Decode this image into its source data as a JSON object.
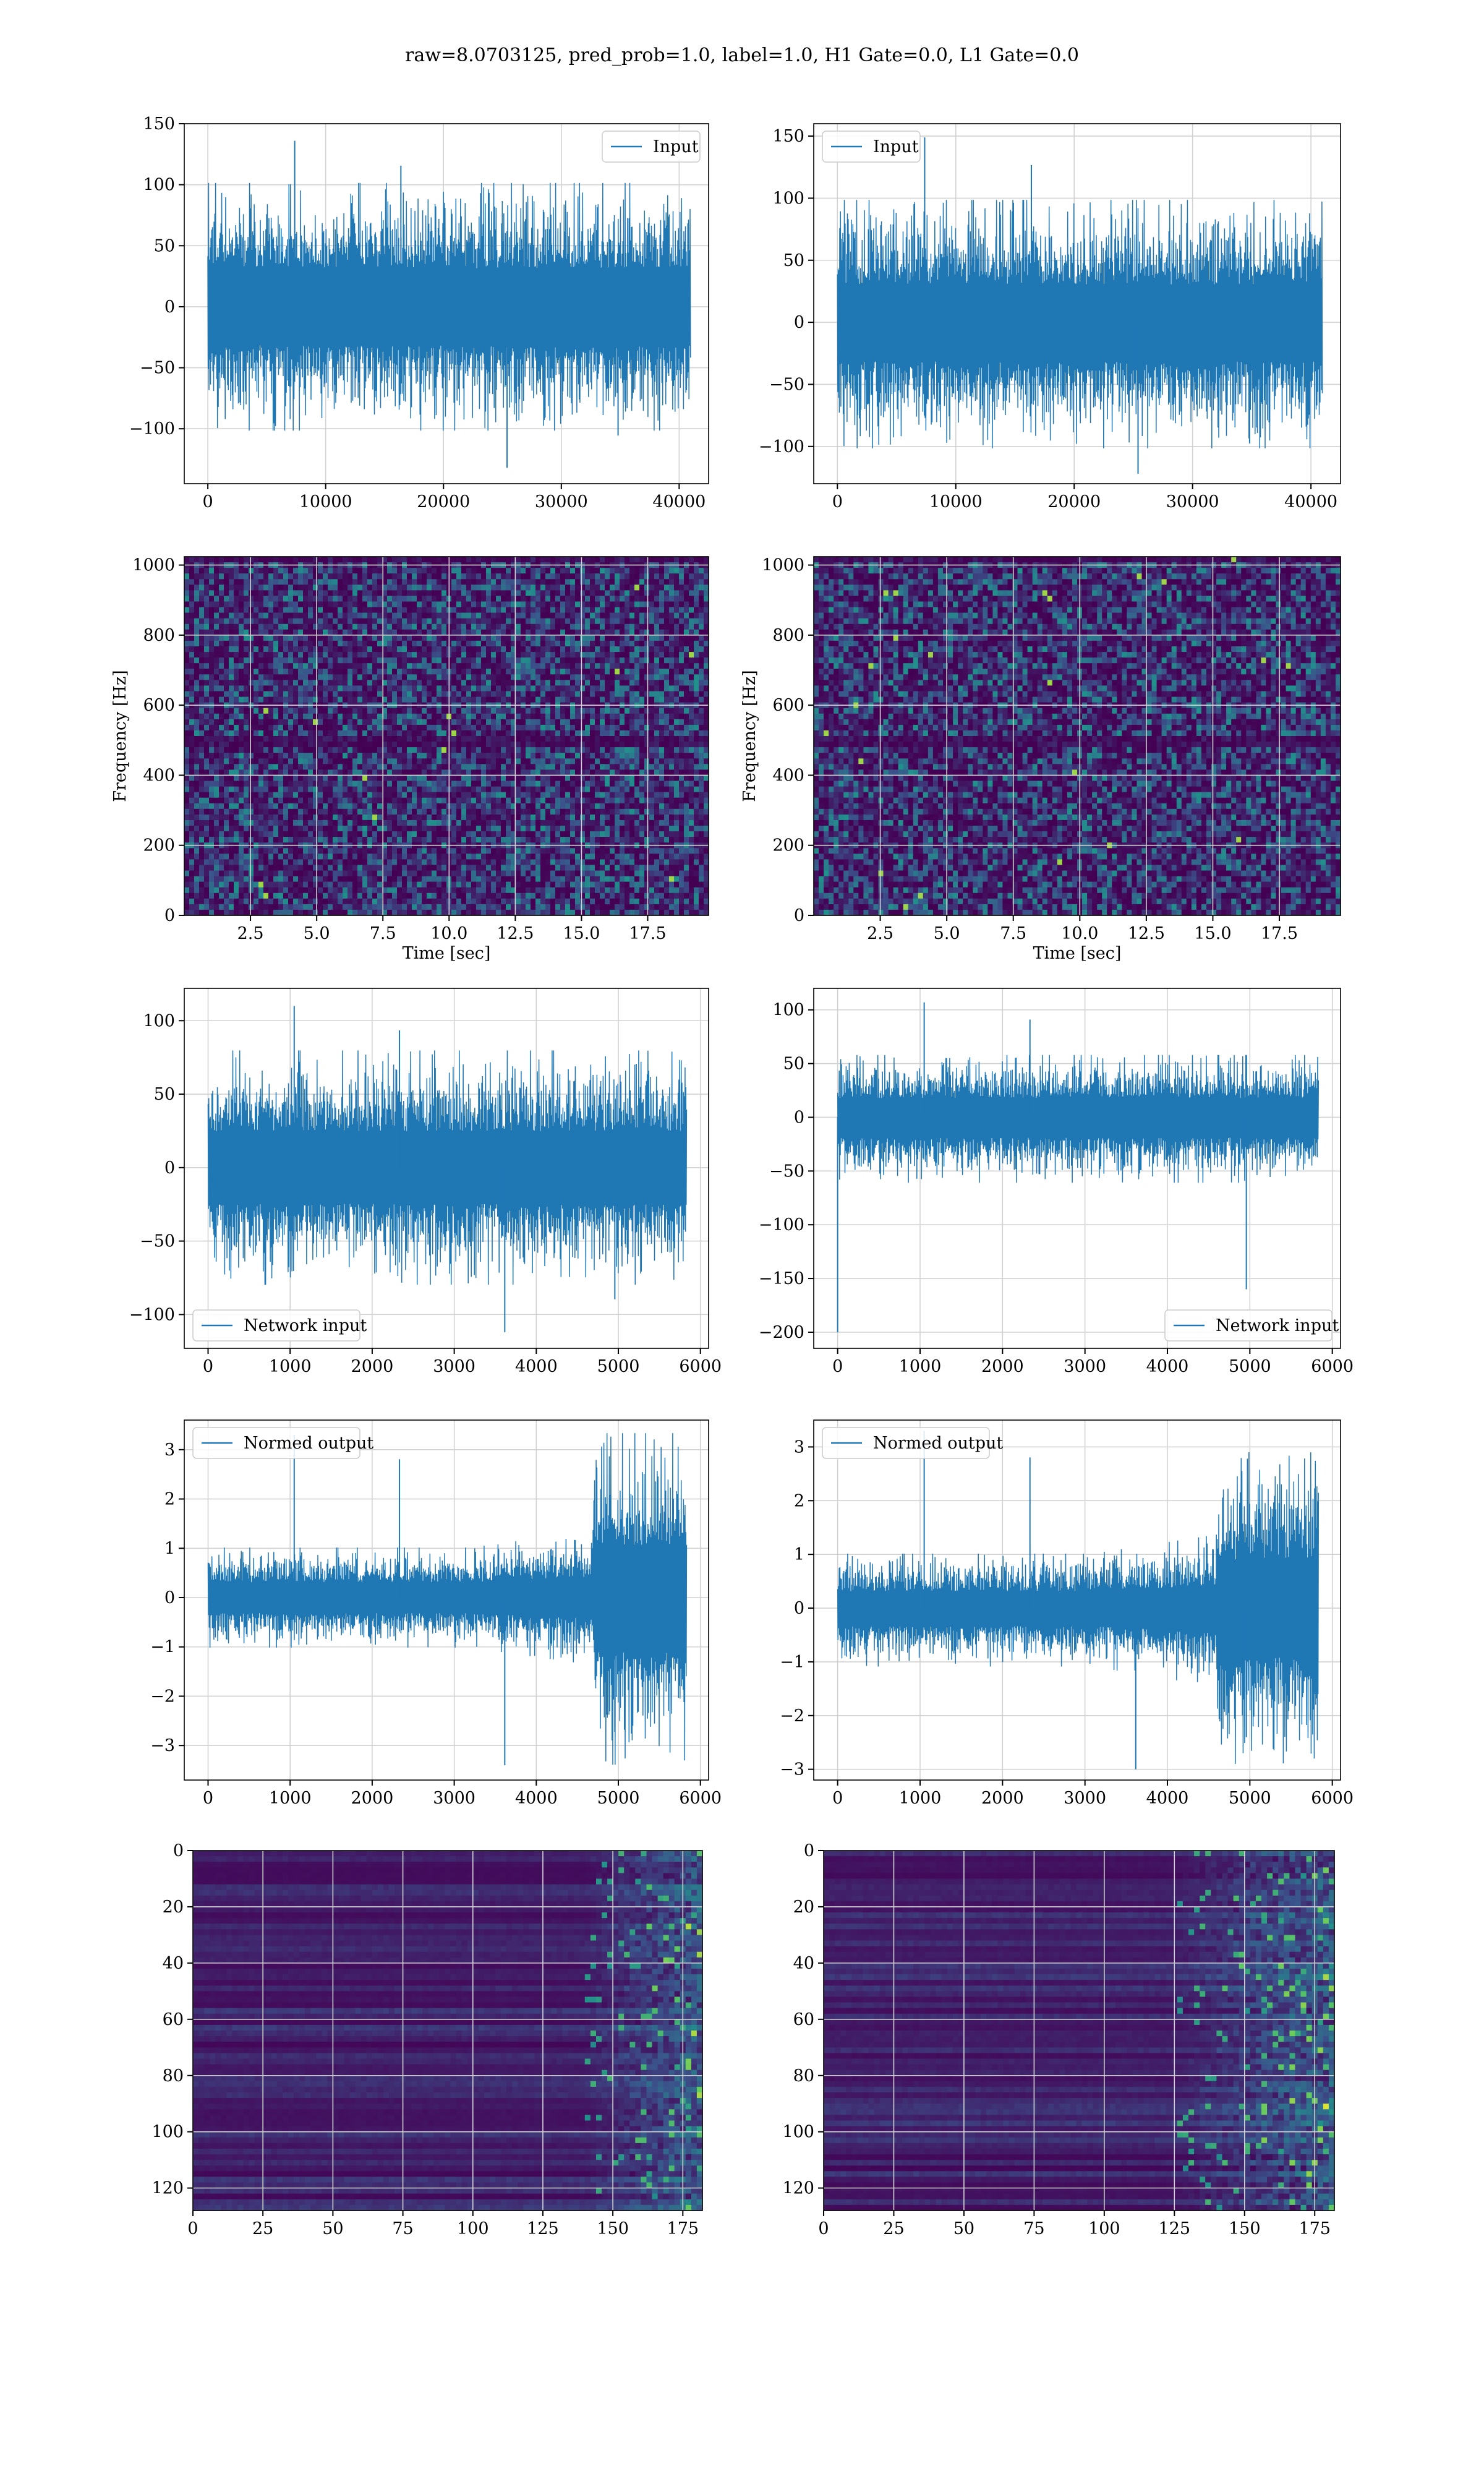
{
  "figure_title": "raw=8.0703125, pred_prob=1.0, label=1.0, H1 Gate=0.0, L1 Gate=0.0",
  "colors": {
    "series": "#1f77b4",
    "grid": "#d2d2d2",
    "viridis_low": "#440154",
    "viridis_mid": "#21908d",
    "viridis_high": "#fde725"
  },
  "chart_data": [
    {
      "id": "h1-input",
      "type": "line",
      "column": "left",
      "row": 0,
      "title": "",
      "xlabel": "",
      "ylabel": "",
      "xlim": [
        -2000,
        42500
      ],
      "ylim": [
        -145,
        150
      ],
      "xticks": [
        0,
        10000,
        20000,
        30000,
        40000
      ],
      "xticklabels": [
        "0",
        "10000",
        "20000",
        "30000",
        "40000"
      ],
      "yticks": [
        -100,
        -50,
        0,
        50,
        100,
        150
      ],
      "yticklabels": [
        "−100",
        "−50",
        "0",
        "50",
        "100",
        "150"
      ],
      "grid": true,
      "legend": "upper right",
      "series": [
        {
          "name": "Input",
          "x": [
            0,
            40960
          ],
          "envelope": {
            "typical_upper": 70,
            "typical_lower": -70,
            "max_peak": 136,
            "min_peak": -132
          }
        }
      ]
    },
    {
      "id": "l1-input",
      "type": "line",
      "column": "right",
      "row": 0,
      "title": "",
      "xlabel": "",
      "ylabel": "",
      "xlim": [
        -2000,
        42500
      ],
      "ylim": [
        -130,
        160
      ],
      "xticks": [
        0,
        10000,
        20000,
        30000,
        40000
      ],
      "xticklabels": [
        "0",
        "10000",
        "20000",
        "30000",
        "40000"
      ],
      "yticks": [
        -100,
        -50,
        0,
        50,
        100,
        150
      ],
      "yticklabels": [
        "−100",
        "−50",
        "0",
        "50",
        "100",
        "150"
      ],
      "grid": true,
      "legend": "upper left",
      "series": [
        {
          "name": "Input",
          "x": [
            0,
            40960
          ],
          "envelope": {
            "typical_upper": 68,
            "typical_lower": -70,
            "max_peak": 149,
            "min_peak": -122
          }
        }
      ]
    },
    {
      "id": "h1-spectrogram",
      "type": "heatmap",
      "column": "left",
      "row": 1,
      "title": "",
      "xlabel": "Time [sec]",
      "ylabel": "Frequency [Hz]",
      "xlim": [
        0,
        19.8
      ],
      "ylim": [
        0,
        1024
      ],
      "xticks": [
        2.5,
        5.0,
        7.5,
        10.0,
        12.5,
        15.0,
        17.5
      ],
      "xticklabels": [
        "2.5",
        "5.0",
        "7.5",
        "10.0",
        "12.5",
        "15.0",
        "17.5"
      ],
      "yticks": [
        0,
        200,
        400,
        600,
        800,
        1000
      ],
      "yticklabels": [
        "0",
        "200",
        "400",
        "600",
        "800",
        "1000"
      ],
      "grid": true,
      "dark_bands_hz": [
        500,
        1020
      ]
    },
    {
      "id": "l1-spectrogram",
      "type": "heatmap",
      "column": "right",
      "row": 1,
      "title": "",
      "xlabel": "Time [sec]",
      "ylabel": "Frequency [Hz]",
      "xlim": [
        0,
        19.8
      ],
      "ylim": [
        0,
        1024
      ],
      "xticks": [
        2.5,
        5.0,
        7.5,
        10.0,
        12.5,
        15.0,
        17.5
      ],
      "xticklabels": [
        "2.5",
        "5.0",
        "7.5",
        "10.0",
        "12.5",
        "15.0",
        "17.5"
      ],
      "yticks": [
        0,
        200,
        400,
        600,
        800,
        1000
      ],
      "yticklabels": [
        "0",
        "200",
        "400",
        "600",
        "800",
        "1000"
      ],
      "grid": true,
      "dark_bands_hz": [
        500,
        1020
      ]
    },
    {
      "id": "h1-network-input",
      "type": "line",
      "column": "left",
      "row": 2,
      "title": "",
      "xlabel": "",
      "ylabel": "",
      "xlim": [
        -290,
        6100
      ],
      "ylim": [
        -123,
        122
      ],
      "xticks": [
        0,
        1000,
        2000,
        3000,
        4000,
        5000,
        6000
      ],
      "xticklabels": [
        "0",
        "1000",
        "2000",
        "3000",
        "4000",
        "5000",
        "6000"
      ],
      "yticks": [
        -100,
        -50,
        0,
        50,
        100
      ],
      "yticklabels": [
        "−100",
        "−50",
        "0",
        "50",
        "100"
      ],
      "grid": true,
      "legend": "lower left",
      "series": [
        {
          "name": "Network input",
          "x": [
            0,
            5832
          ],
          "envelope": {
            "typical_upper": 55,
            "typical_lower": -55,
            "max_peak": 110,
            "min_peak": -112
          }
        }
      ]
    },
    {
      "id": "l1-network-input",
      "type": "line",
      "column": "right",
      "row": 2,
      "title": "",
      "xlabel": "",
      "ylabel": "",
      "xlim": [
        -290,
        6100
      ],
      "ylim": [
        -215,
        120
      ],
      "xticks": [
        0,
        1000,
        2000,
        3000,
        4000,
        5000,
        6000
      ],
      "xticklabels": [
        "0",
        "1000",
        "2000",
        "3000",
        "4000",
        "5000",
        "6000"
      ],
      "yticks": [
        -200,
        -150,
        -100,
        -50,
        0,
        50,
        100
      ],
      "yticklabels": [
        "−200",
        "−150",
        "−100",
        "−50",
        "0",
        "50",
        "100"
      ],
      "grid": true,
      "legend": "lower right",
      "series": [
        {
          "name": "Network input",
          "x": [
            0,
            5832
          ],
          "envelope": {
            "typical_upper": 40,
            "typical_lower": -42,
            "max_peak": 107,
            "min_peak": -200
          }
        }
      ]
    },
    {
      "id": "h1-normed-output",
      "type": "line",
      "column": "left",
      "row": 3,
      "title": "",
      "xlabel": "",
      "ylabel": "",
      "xlim": [
        -290,
        6100
      ],
      "ylim": [
        -3.7,
        3.6
      ],
      "xticks": [
        0,
        1000,
        2000,
        3000,
        4000,
        5000,
        6000
      ],
      "xticklabels": [
        "0",
        "1000",
        "2000",
        "3000",
        "4000",
        "5000",
        "6000"
      ],
      "yticks": [
        -3,
        -2,
        -1,
        0,
        1,
        2,
        3
      ],
      "yticklabels": [
        "−3",
        "−2",
        "−1",
        "0",
        "1",
        "2",
        "3"
      ],
      "grid": true,
      "legend": "upper left",
      "series": [
        {
          "name": "Normed output",
          "x": [
            0,
            5832
          ],
          "envelope": {
            "typical_upper": 0.7,
            "typical_lower": -0.7,
            "burst_start_x": 4700,
            "burst_upper": 2.3,
            "burst_lower": -2.4,
            "max_peak": 3.3,
            "min_peak": -3.4
          }
        }
      ]
    },
    {
      "id": "l1-normed-output",
      "type": "line",
      "column": "right",
      "row": 3,
      "title": "",
      "xlabel": "",
      "ylabel": "",
      "xlim": [
        -290,
        6100
      ],
      "ylim": [
        -3.2,
        3.5
      ],
      "xticks": [
        0,
        1000,
        2000,
        3000,
        4000,
        5000,
        6000
      ],
      "xticklabels": [
        "0",
        "1000",
        "2000",
        "3000",
        "4000",
        "5000",
        "6000"
      ],
      "yticks": [
        -3,
        -2,
        -1,
        0,
        1,
        2,
        3
      ],
      "yticklabels": [
        "−3",
        "−2",
        "−1",
        "0",
        "1",
        "2",
        "3"
      ],
      "grid": true,
      "legend": "upper left",
      "series": [
        {
          "name": "Normed output",
          "x": [
            0,
            5832
          ],
          "envelope": {
            "typical_upper": 0.7,
            "typical_lower": -0.75,
            "burst_start_x": 4600,
            "burst_upper": 2.0,
            "burst_lower": -2.0,
            "max_peak": 3.3,
            "min_peak": -3.0
          }
        }
      ]
    },
    {
      "id": "h1-feature-map",
      "type": "heatmap",
      "column": "left",
      "row": 4,
      "title": "",
      "xlabel": "",
      "ylabel": "",
      "xlim": [
        0,
        182
      ],
      "ylim": [
        128,
        0
      ],
      "xticks": [
        0,
        25,
        50,
        75,
        100,
        125,
        150,
        175
      ],
      "xticklabels": [
        "0",
        "25",
        "50",
        "75",
        "100",
        "125",
        "150",
        "175"
      ],
      "yticks": [
        0,
        20,
        40,
        60,
        80,
        100,
        120
      ],
      "yticklabels": [
        "0",
        "20",
        "40",
        "60",
        "80",
        "100",
        "120"
      ],
      "grid": true,
      "active_from_x": 140
    },
    {
      "id": "l1-feature-map",
      "type": "heatmap",
      "column": "right",
      "row": 4,
      "title": "",
      "xlabel": "",
      "ylabel": "",
      "xlim": [
        0,
        182
      ],
      "ylim": [
        128,
        0
      ],
      "xticks": [
        0,
        25,
        50,
        75,
        100,
        125,
        150,
        175
      ],
      "xticklabels": [
        "0",
        "25",
        "50",
        "75",
        "100",
        "125",
        "150",
        "175"
      ],
      "yticks": [
        0,
        20,
        40,
        60,
        80,
        100,
        120
      ],
      "yticklabels": [
        "0",
        "20",
        "40",
        "60",
        "80",
        "100",
        "120"
      ],
      "grid": true,
      "active_from_x": 125
    }
  ]
}
